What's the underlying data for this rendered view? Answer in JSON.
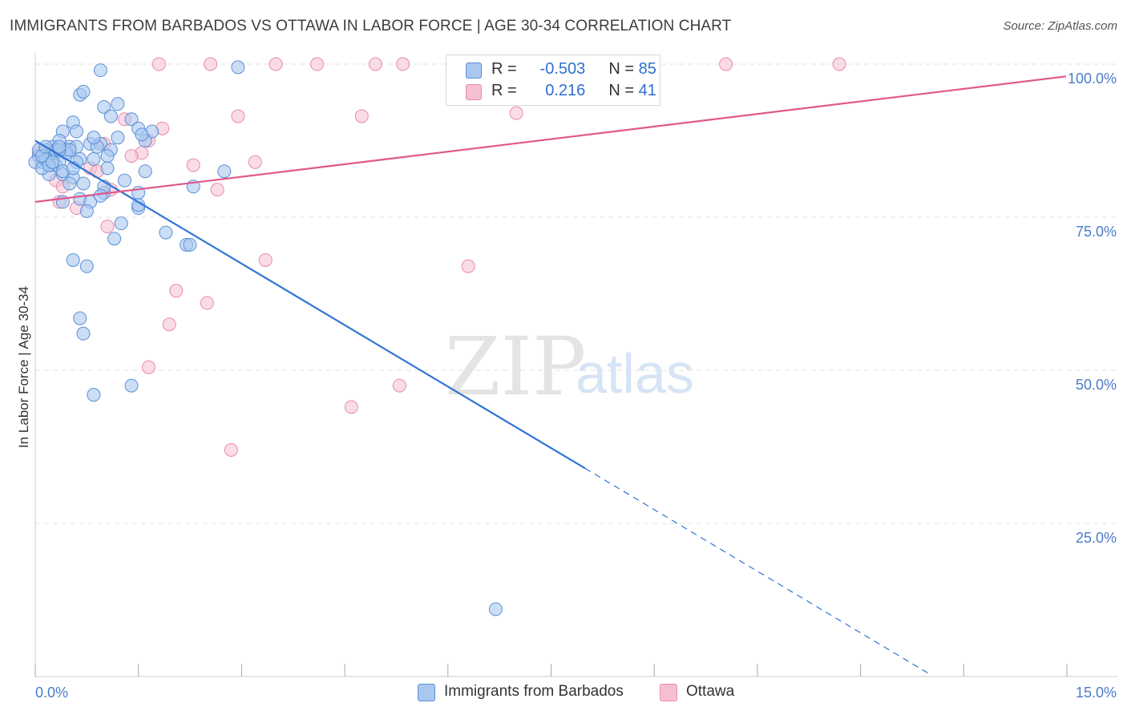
{
  "title": "IMMIGRANTS FROM BARBADOS VS OTTAWA IN LABOR FORCE | AGE 30-34 CORRELATION CHART",
  "source": "Source: ZipAtlas.com",
  "watermark": {
    "zip": "ZIP",
    "atlas": "atlas"
  },
  "legend": {
    "rows": [
      {
        "r_label": "R =",
        "r_value": "-0.503",
        "n_label": "N =",
        "n_value": "85"
      },
      {
        "r_label": "R =",
        "r_value": "0.216",
        "n_label": "N =",
        "n_value": "41"
      }
    ]
  },
  "bottom_legend": [
    "Immigrants from Barbados",
    "Ottawa"
  ],
  "colors": {
    "blue_fill": "#a9c8f0",
    "blue_stroke": "#5b8fd6",
    "blue_line": "#2f74d6",
    "pink_fill": "#f6c0d2",
    "pink_stroke": "#e98aaa",
    "pink_line": "#e0588a",
    "grid": "#e2e2e2",
    "tick_label": "#4a7cc9"
  },
  "chart_data": {
    "type": "scatter",
    "title": "IMMIGRANTS FROM BARBADOS VS OTTAWA IN LABOR FORCE | AGE 30-34 CORRELATION CHART",
    "xlabel": "",
    "ylabel": "In Labor Force | Age 30-34",
    "xlim": [
      0,
      15
    ],
    "ylim": [
      0,
      101
    ],
    "x_tick_labels": [
      "0.0%",
      "15.0%"
    ],
    "y_ticks": [
      25,
      50,
      75,
      100
    ],
    "y_tick_labels": [
      "25.0%",
      "50.0%",
      "75.0%",
      "100.0%"
    ],
    "grid": true,
    "series": [
      {
        "name": "Immigrants from Barbados",
        "r": -0.503,
        "n": 85,
        "trend": {
          "x0": 0,
          "y0": 87.5,
          "x1": 8.0,
          "y1": 34.0,
          "dashed_to_x": 13.0,
          "dashed_to_y": 0.5
        },
        "points": [
          [
            0.95,
            99.0
          ],
          [
            2.95,
            99.5
          ],
          [
            0.65,
            95.0
          ],
          [
            0.7,
            95.5
          ],
          [
            1.0,
            93.0
          ],
          [
            1.2,
            93.5
          ],
          [
            1.1,
            91.5
          ],
          [
            1.4,
            91.0
          ],
          [
            0.55,
            90.5
          ],
          [
            0.4,
            89.0
          ],
          [
            0.6,
            89.0
          ],
          [
            1.5,
            89.5
          ],
          [
            1.7,
            89.0
          ],
          [
            0.35,
            87.5
          ],
          [
            0.8,
            87.0
          ],
          [
            0.95,
            87.0
          ],
          [
            1.6,
            87.5
          ],
          [
            0.25,
            86.5
          ],
          [
            0.5,
            86.5
          ],
          [
            0.9,
            86.5
          ],
          [
            1.1,
            86.0
          ],
          [
            0.15,
            86.0
          ],
          [
            0.3,
            85.5
          ],
          [
            0.45,
            86.0
          ],
          [
            0.05,
            85.0
          ],
          [
            0.2,
            85.0
          ],
          [
            0.65,
            84.5
          ],
          [
            0.85,
            84.5
          ],
          [
            1.05,
            85.0
          ],
          [
            0.1,
            84.0
          ],
          [
            0.3,
            83.5
          ],
          [
            0.0,
            84.0
          ],
          [
            1.05,
            83.0
          ],
          [
            1.6,
            82.5
          ],
          [
            2.75,
            82.5
          ],
          [
            0.2,
            82.0
          ],
          [
            0.4,
            82.0
          ],
          [
            0.55,
            81.5
          ],
          [
            1.3,
            81.0
          ],
          [
            0.7,
            80.5
          ],
          [
            0.5,
            80.5
          ],
          [
            2.3,
            80.0
          ],
          [
            1.0,
            79.0
          ],
          [
            1.5,
            79.0
          ],
          [
            0.65,
            78.0
          ],
          [
            0.8,
            77.5
          ],
          [
            1.5,
            76.5
          ],
          [
            0.4,
            77.5
          ],
          [
            0.75,
            76.0
          ],
          [
            1.25,
            74.0
          ],
          [
            1.5,
            77.0
          ],
          [
            1.15,
            71.5
          ],
          [
            1.9,
            72.5
          ],
          [
            2.2,
            70.5
          ],
          [
            2.25,
            70.5
          ],
          [
            0.55,
            68.0
          ],
          [
            0.75,
            67.0
          ],
          [
            0.65,
            58.5
          ],
          [
            0.7,
            56.0
          ],
          [
            0.85,
            46.0
          ],
          [
            1.4,
            47.5
          ],
          [
            6.7,
            11.0
          ],
          [
            0.1,
            83.0
          ],
          [
            0.25,
            85.5
          ],
          [
            0.35,
            84.0
          ],
          [
            0.45,
            85.5
          ],
          [
            0.6,
            86.5
          ],
          [
            0.15,
            84.5
          ],
          [
            0.3,
            86.0
          ],
          [
            0.5,
            86.0
          ],
          [
            0.6,
            84.0
          ],
          [
            0.2,
            83.5
          ],
          [
            0.4,
            82.5
          ],
          [
            0.05,
            86.0
          ],
          [
            0.1,
            85.0
          ],
          [
            0.25,
            84.0
          ],
          [
            0.35,
            86.0
          ],
          [
            1.2,
            88.0
          ],
          [
            1.55,
            88.5
          ],
          [
            0.85,
            88.0
          ],
          [
            1.0,
            80.0
          ],
          [
            0.95,
            78.5
          ],
          [
            0.35,
            86.5
          ],
          [
            0.55,
            83.0
          ],
          [
            0.15,
            86.5
          ]
        ]
      },
      {
        "name": "Ottawa",
        "r": 0.216,
        "n": 41,
        "trend": {
          "x0": 0,
          "y0": 77.5,
          "x1": 15.0,
          "y1": 98.0
        },
        "points": [
          [
            1.8,
            100.0
          ],
          [
            2.55,
            100.0
          ],
          [
            3.5,
            100.0
          ],
          [
            4.1,
            100.0
          ],
          [
            4.95,
            100.0
          ],
          [
            5.35,
            100.0
          ],
          [
            7.1,
            100.0
          ],
          [
            10.05,
            100.0
          ],
          [
            11.7,
            100.0
          ],
          [
            2.95,
            91.5
          ],
          [
            4.75,
            91.5
          ],
          [
            7.0,
            92.0
          ],
          [
            1.3,
            91.0
          ],
          [
            1.85,
            89.5
          ],
          [
            1.65,
            87.5
          ],
          [
            1.0,
            87.0
          ],
          [
            1.55,
            85.5
          ],
          [
            1.4,
            85.0
          ],
          [
            3.2,
            84.0
          ],
          [
            2.3,
            83.5
          ],
          [
            0.8,
            83.0
          ],
          [
            0.9,
            82.5
          ],
          [
            0.25,
            83.5
          ],
          [
            0.3,
            81.0
          ],
          [
            0.4,
            80.0
          ],
          [
            1.1,
            79.5
          ],
          [
            2.65,
            79.5
          ],
          [
            0.35,
            77.5
          ],
          [
            0.6,
            76.5
          ],
          [
            1.05,
            73.5
          ],
          [
            3.35,
            68.0
          ],
          [
            6.3,
            67.0
          ],
          [
            2.05,
            63.0
          ],
          [
            2.5,
            61.0
          ],
          [
            1.95,
            57.5
          ],
          [
            1.65,
            50.5
          ],
          [
            5.3,
            47.5
          ],
          [
            4.6,
            44.0
          ],
          [
            2.85,
            37.0
          ],
          [
            0.15,
            84.5
          ],
          [
            0.05,
            85.5
          ]
        ]
      }
    ]
  }
}
